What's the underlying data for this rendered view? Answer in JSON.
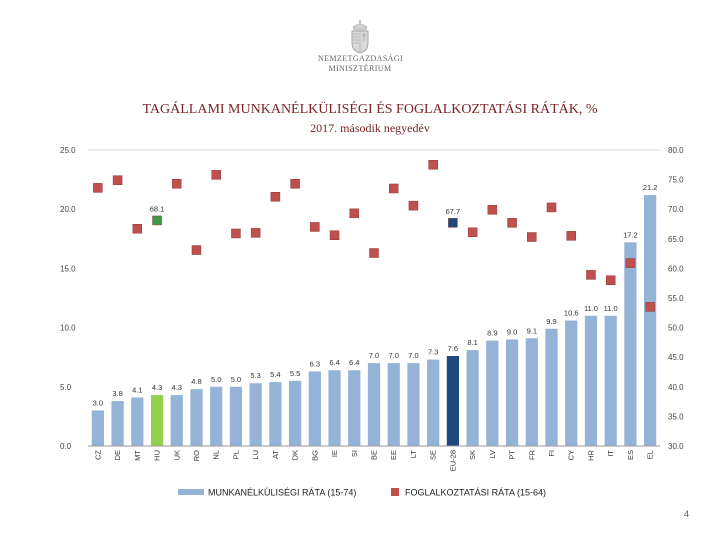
{
  "header": {
    "logo_line1": "NEMZETGAZDASÁGI",
    "logo_line2": "MINISZTÉRIUM",
    "title": "TAGÁLLAMI MUNKANÉLKÜLISÉGI ÉS FOGLALKOZTATÁSI RÁTÁK, %",
    "subtitle": "2017. második negyedév"
  },
  "colors": {
    "bar": "#95b3d7",
    "bar_highlight_hu": "#92d050",
    "bar_highlight_eu": "#1f497d",
    "marker": "#c0504d",
    "marker_highlight_hu": "#3a9a48",
    "marker_highlight_eu": "#1f497d"
  },
  "chart_data": {
    "type": "bar",
    "categories": [
      "CZ",
      "DE",
      "MT",
      "HU",
      "UK",
      "RO",
      "NL",
      "PL",
      "LU",
      "AT",
      "DK",
      "BG",
      "IE",
      "SI",
      "BE",
      "EE",
      "LT",
      "SE",
      "EU-28",
      "SK",
      "LV",
      "PT",
      "FR",
      "FI",
      "CY",
      "HR",
      "IT",
      "ES",
      "EL"
    ],
    "series": [
      {
        "name": "MUNKANÉLKÜLISÉGI RÁTA (15-74)",
        "axis": "left",
        "values": [
          3.0,
          3.8,
          4.1,
          4.3,
          4.3,
          4.8,
          5.0,
          5.0,
          5.3,
          5.4,
          5.5,
          6.3,
          6.4,
          6.4,
          7.0,
          7.0,
          7.0,
          7.3,
          7.6,
          8.1,
          8.9,
          9.0,
          9.1,
          9.9,
          10.6,
          11.0,
          11.0,
          17.2,
          21.2
        ],
        "labels": [
          "3.0",
          "3.8",
          "4.1",
          "4.3",
          "4.3",
          "4.8",
          "5.0",
          "5.0",
          "5.3",
          "5.4",
          "5.5",
          "6.3",
          "6.4",
          "6.4",
          "7.0",
          "7.0",
          "7.0",
          "7.3",
          "7.6",
          "8.1",
          "8.9",
          "9.0",
          "9.1",
          "9.9",
          "10.6",
          "11.0",
          "11.0",
          "17.2",
          "21.2"
        ]
      },
      {
        "name": "FOGLALKOZTATÁSI RÁTA (15-64)",
        "axis": "right",
        "values": [
          73.6,
          74.9,
          66.7,
          68.1,
          74.3,
          63.1,
          75.8,
          65.9,
          66.0,
          72.1,
          74.3,
          67.0,
          65.6,
          69.3,
          62.6,
          73.5,
          70.6,
          77.5,
          67.7,
          66.1,
          69.9,
          67.7,
          65.3,
          70.3,
          65.5,
          58.9,
          58.0,
          60.9,
          53.5
        ],
        "labels": [
          "",
          "",
          "",
          "68.1",
          "",
          "",
          "",
          "",
          "",
          "",
          "",
          "",
          "",
          "",
          "",
          "",
          "",
          "",
          "67.7",
          "",
          "",
          "",
          "",
          "",
          "",
          "",
          "",
          "",
          ""
        ]
      }
    ],
    "highlight": {
      "HU": "hu",
      "EU-28": "eu"
    },
    "left_axis": {
      "min": 0,
      "max": 25,
      "step": 5,
      "ticks": [
        "0.0",
        "5.0",
        "10.0",
        "15.0",
        "20.0",
        "25.0"
      ]
    },
    "right_axis": {
      "min": 30,
      "max": 80,
      "step": 5,
      "ticks": [
        "30.0",
        "35.0",
        "40.0",
        "45.0",
        "50.0",
        "55.0",
        "60.0",
        "65.0",
        "70.0",
        "75.0",
        "80.0"
      ]
    },
    "legend": [
      "MUNKANÉLKÜLISÉGI RÁTA (15-74)",
      "FOGLALKOZTATÁSI RÁTA (15-64)"
    ],
    "legend_position": "bottom"
  },
  "footer": {
    "page_number": "4"
  }
}
